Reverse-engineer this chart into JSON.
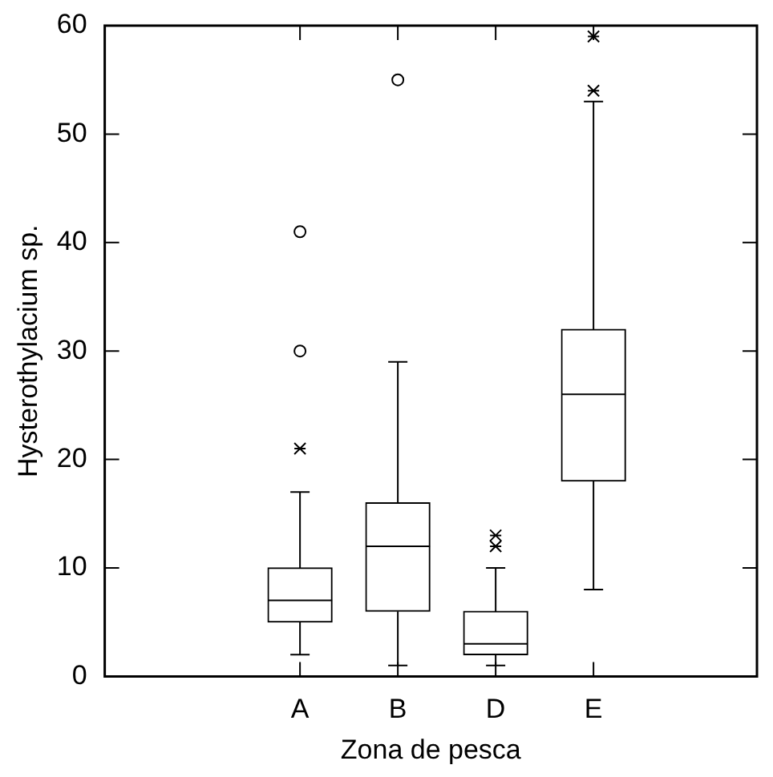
{
  "chart_data": {
    "type": "box",
    "xlabel": "Zona de pesca",
    "ylabel": "Hysterothylacium sp.",
    "categories": [
      "A",
      "B",
      "D",
      "E"
    ],
    "boxes": [
      {
        "low": 2,
        "q1": 5,
        "median": 7,
        "q3": 10,
        "high": 17,
        "outliers": [
          21,
          30,
          41
        ]
      },
      {
        "low": 1,
        "q1": 6,
        "median": 12,
        "q3": 16,
        "high": 29,
        "outliers": [
          55
        ]
      },
      {
        "low": 1,
        "q1": 2,
        "median": 3,
        "q3": 6,
        "high": 10,
        "outliers": [
          12,
          13
        ]
      },
      {
        "low": 8,
        "q1": 18,
        "median": 26,
        "q3": 32,
        "high": 53,
        "outliers": [
          54,
          59
        ]
      }
    ],
    "ylim": [
      0,
      60
    ],
    "yticks": [
      0,
      10,
      20,
      30,
      40,
      50,
      60
    ]
  }
}
